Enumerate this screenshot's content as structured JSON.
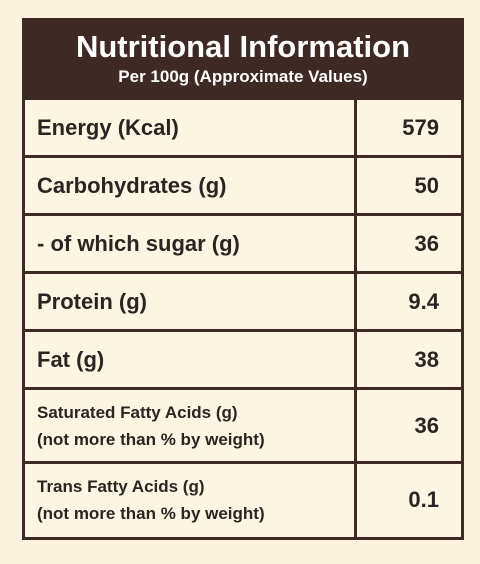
{
  "header": {
    "title": "Nutritional Information",
    "subtitle": "Per 100g (Approximate Values)"
  },
  "table": {
    "rows": [
      {
        "label": "Energy (Kcal)",
        "value": 579
      },
      {
        "label": "Carbohydrates (g)",
        "value": 50
      },
      {
        "label": "- of which sugar (g)",
        "value": 36
      },
      {
        "label": "Protein (g)",
        "value": 9.4
      },
      {
        "label": "Fat (g)",
        "value": 38
      },
      {
        "label": "Saturated Fatty Acids (g)",
        "note": "(not more than % by weight)",
        "value": 36
      },
      {
        "label": "Trans Fatty Acids (g)",
        "note": "(not more than % by weight)",
        "value": 0.1
      }
    ]
  }
}
